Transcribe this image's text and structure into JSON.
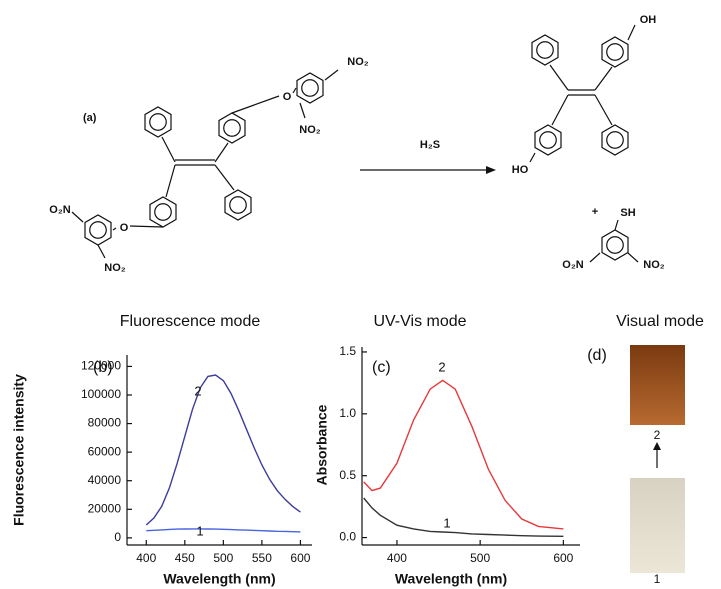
{
  "scheme": {
    "label": "(a)",
    "reagent": "H₂S",
    "plus": "+",
    "left_groups": [
      "NO₂",
      "NO₂",
      "O₂N",
      "NO₂",
      "O",
      "O"
    ],
    "right_groups": [
      "OH",
      "HO",
      "SH",
      "O₂N",
      "NO₂"
    ]
  },
  "chart_data": [
    {
      "type": "line",
      "panel": "(b)",
      "title": "Fluorescence mode",
      "x_label": "Wavelength (nm)",
      "y_label": "Fluorescence intensity",
      "xlim": [
        375,
        615
      ],
      "xticks": [
        400,
        450,
        500,
        550,
        600
      ],
      "ylim": [
        -5000,
        128000
      ],
      "yticks": [
        0,
        20000,
        40000,
        60000,
        80000,
        100000,
        120000
      ],
      "x": [
        400,
        410,
        420,
        430,
        440,
        450,
        460,
        470,
        480,
        490,
        500,
        510,
        520,
        530,
        540,
        550,
        560,
        570,
        580,
        590,
        600
      ],
      "series": [
        {
          "name": "1",
          "color": "#4a63e0",
          "values": [
            5000,
            5300,
            5600,
            5900,
            6100,
            6200,
            6300,
            6300,
            6200,
            6100,
            6000,
            5800,
            5600,
            5400,
            5200,
            5000,
            4800,
            4600,
            4500,
            4300,
            4200
          ]
        },
        {
          "name": "2",
          "color": "#3c3c9c",
          "values": [
            9000,
            14000,
            22000,
            35000,
            52000,
            71000,
            90000,
            105000,
            113000,
            114000,
            110000,
            101000,
            89000,
            76000,
            63000,
            51000,
            41000,
            33000,
            27000,
            22000,
            18000
          ]
        }
      ]
    },
    {
      "type": "line",
      "panel": "(c)",
      "title": "UV-Vis mode",
      "x_label": "Wavelength (nm)",
      "y_label": "Absorbance",
      "xlim": [
        358,
        620
      ],
      "xticks": [
        400,
        500,
        600
      ],
      "ylim": [
        -0.06,
        1.54
      ],
      "yticks": [
        {
          "value": 0,
          "label": "0.0"
        },
        0.5,
        {
          "value": 1,
          "label": "1.0"
        },
        1.5
      ],
      "x": [
        360,
        370,
        380,
        400,
        420,
        440,
        455,
        470,
        490,
        510,
        530,
        550,
        570,
        600
      ],
      "series": [
        {
          "name": "1",
          "color": "#333333",
          "values": [
            0.32,
            0.24,
            0.18,
            0.1,
            0.07,
            0.05,
            0.045,
            0.04,
            0.03,
            0.025,
            0.02,
            0.015,
            0.012,
            0.01
          ]
        },
        {
          "name": "2",
          "color": "#e8393a",
          "values": [
            0.45,
            0.38,
            0.4,
            0.6,
            0.95,
            1.2,
            1.27,
            1.2,
            0.9,
            0.55,
            0.3,
            0.15,
            0.09,
            0.07
          ]
        }
      ]
    }
  ],
  "visual": {
    "panel": "(d)",
    "title": "Visual mode",
    "labels": [
      "2",
      "1"
    ]
  }
}
